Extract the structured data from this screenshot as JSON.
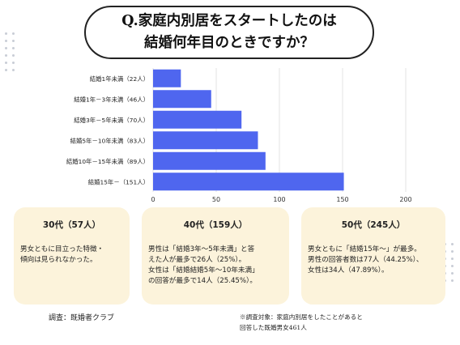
{
  "header": {
    "line1": "Q.家庭内別居をスタートしたのは",
    "line2": "結婚何年目のときですか？"
  },
  "chart_data": {
    "type": "bar",
    "orientation": "horizontal",
    "categories": [
      "結婚1年未満（22人）",
      "結婚1年－3年未満（46人）",
      "結婚3年－5年未満（70人）",
      "結婚5年－10年未満（83人）",
      "結婚10年－15年未満（89人）",
      "結婚15年－（151人）"
    ],
    "values": [
      22,
      46,
      70,
      83,
      89,
      151
    ],
    "xlim": [
      0,
      200
    ],
    "xticks": [
      0,
      50,
      100,
      150,
      200
    ],
    "grid": true,
    "bar_color": "#4f66ef"
  },
  "cards": [
    {
      "title": "30代（57人）",
      "lines": [
        "男女ともに目立った特徴・",
        "傾向は見られなかった。"
      ]
    },
    {
      "title": "40代（159人）",
      "lines": [
        "男性は「結婚3年～5年未満」と答",
        "えた人が最多で26人（25%）。",
        "女性は「結婚結婚5年～10年未満」",
        "の回答が最多で14人（25.45%）。"
      ]
    },
    {
      "title": "50代（245人）",
      "lines": [
        "男女ともに「結婚15年～」が最多。",
        "男性の回答者数は77人（44.25%）、",
        "女性は34人（47.89%）。"
      ]
    }
  ],
  "footer": {
    "source": "調査：既婚者クラブ",
    "note_line1": "※調査対象：家庭内別居をしたことがあると",
    "note_line2": "回答した既婚男女461人"
  },
  "colors": {
    "card_bg": "#fcf3db",
    "dots": "#c9cdd6"
  }
}
